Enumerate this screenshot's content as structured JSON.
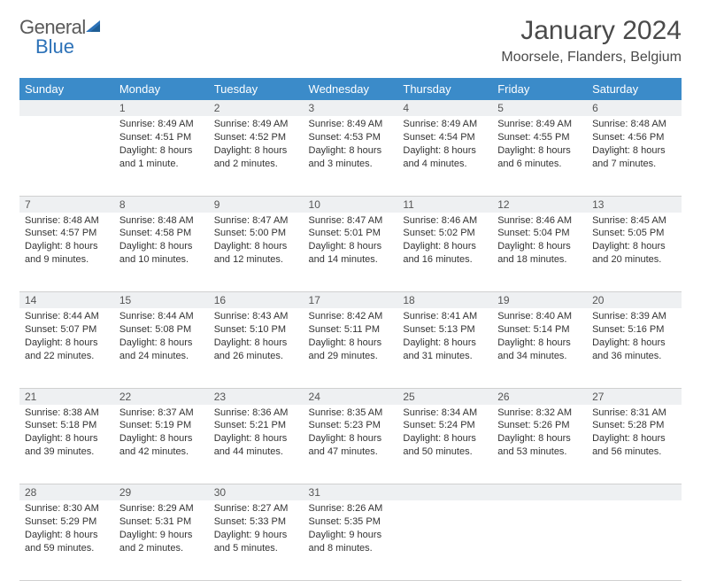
{
  "brand": {
    "part1": "General",
    "part2": "Blue"
  },
  "title": "January 2024",
  "location": "Moorsele, Flanders, Belgium",
  "colors": {
    "header_bg": "#3b8bc9",
    "daynum_bg": "#eef0f2",
    "text": "#333333",
    "logo_gray": "#5a5a5a",
    "logo_blue": "#2d72b8"
  },
  "weekdays": [
    "Sunday",
    "Monday",
    "Tuesday",
    "Wednesday",
    "Thursday",
    "Friday",
    "Saturday"
  ],
  "weeks": [
    {
      "nums": [
        "",
        "1",
        "2",
        "3",
        "4",
        "5",
        "6"
      ],
      "cells": [
        null,
        {
          "sunrise": "Sunrise: 8:49 AM",
          "sunset": "Sunset: 4:51 PM",
          "day1": "Daylight: 8 hours",
          "day2": "and 1 minute."
        },
        {
          "sunrise": "Sunrise: 8:49 AM",
          "sunset": "Sunset: 4:52 PM",
          "day1": "Daylight: 8 hours",
          "day2": "and 2 minutes."
        },
        {
          "sunrise": "Sunrise: 8:49 AM",
          "sunset": "Sunset: 4:53 PM",
          "day1": "Daylight: 8 hours",
          "day2": "and 3 minutes."
        },
        {
          "sunrise": "Sunrise: 8:49 AM",
          "sunset": "Sunset: 4:54 PM",
          "day1": "Daylight: 8 hours",
          "day2": "and 4 minutes."
        },
        {
          "sunrise": "Sunrise: 8:49 AM",
          "sunset": "Sunset: 4:55 PM",
          "day1": "Daylight: 8 hours",
          "day2": "and 6 minutes."
        },
        {
          "sunrise": "Sunrise: 8:48 AM",
          "sunset": "Sunset: 4:56 PM",
          "day1": "Daylight: 8 hours",
          "day2": "and 7 minutes."
        }
      ]
    },
    {
      "nums": [
        "7",
        "8",
        "9",
        "10",
        "11",
        "12",
        "13"
      ],
      "cells": [
        {
          "sunrise": "Sunrise: 8:48 AM",
          "sunset": "Sunset: 4:57 PM",
          "day1": "Daylight: 8 hours",
          "day2": "and 9 minutes."
        },
        {
          "sunrise": "Sunrise: 8:48 AM",
          "sunset": "Sunset: 4:58 PM",
          "day1": "Daylight: 8 hours",
          "day2": "and 10 minutes."
        },
        {
          "sunrise": "Sunrise: 8:47 AM",
          "sunset": "Sunset: 5:00 PM",
          "day1": "Daylight: 8 hours",
          "day2": "and 12 minutes."
        },
        {
          "sunrise": "Sunrise: 8:47 AM",
          "sunset": "Sunset: 5:01 PM",
          "day1": "Daylight: 8 hours",
          "day2": "and 14 minutes."
        },
        {
          "sunrise": "Sunrise: 8:46 AM",
          "sunset": "Sunset: 5:02 PM",
          "day1": "Daylight: 8 hours",
          "day2": "and 16 minutes."
        },
        {
          "sunrise": "Sunrise: 8:46 AM",
          "sunset": "Sunset: 5:04 PM",
          "day1": "Daylight: 8 hours",
          "day2": "and 18 minutes."
        },
        {
          "sunrise": "Sunrise: 8:45 AM",
          "sunset": "Sunset: 5:05 PM",
          "day1": "Daylight: 8 hours",
          "day2": "and 20 minutes."
        }
      ]
    },
    {
      "nums": [
        "14",
        "15",
        "16",
        "17",
        "18",
        "19",
        "20"
      ],
      "cells": [
        {
          "sunrise": "Sunrise: 8:44 AM",
          "sunset": "Sunset: 5:07 PM",
          "day1": "Daylight: 8 hours",
          "day2": "and 22 minutes."
        },
        {
          "sunrise": "Sunrise: 8:44 AM",
          "sunset": "Sunset: 5:08 PM",
          "day1": "Daylight: 8 hours",
          "day2": "and 24 minutes."
        },
        {
          "sunrise": "Sunrise: 8:43 AM",
          "sunset": "Sunset: 5:10 PM",
          "day1": "Daylight: 8 hours",
          "day2": "and 26 minutes."
        },
        {
          "sunrise": "Sunrise: 8:42 AM",
          "sunset": "Sunset: 5:11 PM",
          "day1": "Daylight: 8 hours",
          "day2": "and 29 minutes."
        },
        {
          "sunrise": "Sunrise: 8:41 AM",
          "sunset": "Sunset: 5:13 PM",
          "day1": "Daylight: 8 hours",
          "day2": "and 31 minutes."
        },
        {
          "sunrise": "Sunrise: 8:40 AM",
          "sunset": "Sunset: 5:14 PM",
          "day1": "Daylight: 8 hours",
          "day2": "and 34 minutes."
        },
        {
          "sunrise": "Sunrise: 8:39 AM",
          "sunset": "Sunset: 5:16 PM",
          "day1": "Daylight: 8 hours",
          "day2": "and 36 minutes."
        }
      ]
    },
    {
      "nums": [
        "21",
        "22",
        "23",
        "24",
        "25",
        "26",
        "27"
      ],
      "cells": [
        {
          "sunrise": "Sunrise: 8:38 AM",
          "sunset": "Sunset: 5:18 PM",
          "day1": "Daylight: 8 hours",
          "day2": "and 39 minutes."
        },
        {
          "sunrise": "Sunrise: 8:37 AM",
          "sunset": "Sunset: 5:19 PM",
          "day1": "Daylight: 8 hours",
          "day2": "and 42 minutes."
        },
        {
          "sunrise": "Sunrise: 8:36 AM",
          "sunset": "Sunset: 5:21 PM",
          "day1": "Daylight: 8 hours",
          "day2": "and 44 minutes."
        },
        {
          "sunrise": "Sunrise: 8:35 AM",
          "sunset": "Sunset: 5:23 PM",
          "day1": "Daylight: 8 hours",
          "day2": "and 47 minutes."
        },
        {
          "sunrise": "Sunrise: 8:34 AM",
          "sunset": "Sunset: 5:24 PM",
          "day1": "Daylight: 8 hours",
          "day2": "and 50 minutes."
        },
        {
          "sunrise": "Sunrise: 8:32 AM",
          "sunset": "Sunset: 5:26 PM",
          "day1": "Daylight: 8 hours",
          "day2": "and 53 minutes."
        },
        {
          "sunrise": "Sunrise: 8:31 AM",
          "sunset": "Sunset: 5:28 PM",
          "day1": "Daylight: 8 hours",
          "day2": "and 56 minutes."
        }
      ]
    },
    {
      "nums": [
        "28",
        "29",
        "30",
        "31",
        "",
        "",
        ""
      ],
      "cells": [
        {
          "sunrise": "Sunrise: 8:30 AM",
          "sunset": "Sunset: 5:29 PM",
          "day1": "Daylight: 8 hours",
          "day2": "and 59 minutes."
        },
        {
          "sunrise": "Sunrise: 8:29 AM",
          "sunset": "Sunset: 5:31 PM",
          "day1": "Daylight: 9 hours",
          "day2": "and 2 minutes."
        },
        {
          "sunrise": "Sunrise: 8:27 AM",
          "sunset": "Sunset: 5:33 PM",
          "day1": "Daylight: 9 hours",
          "day2": "and 5 minutes."
        },
        {
          "sunrise": "Sunrise: 8:26 AM",
          "sunset": "Sunset: 5:35 PM",
          "day1": "Daylight: 9 hours",
          "day2": "and 8 minutes."
        },
        null,
        null,
        null
      ]
    }
  ]
}
